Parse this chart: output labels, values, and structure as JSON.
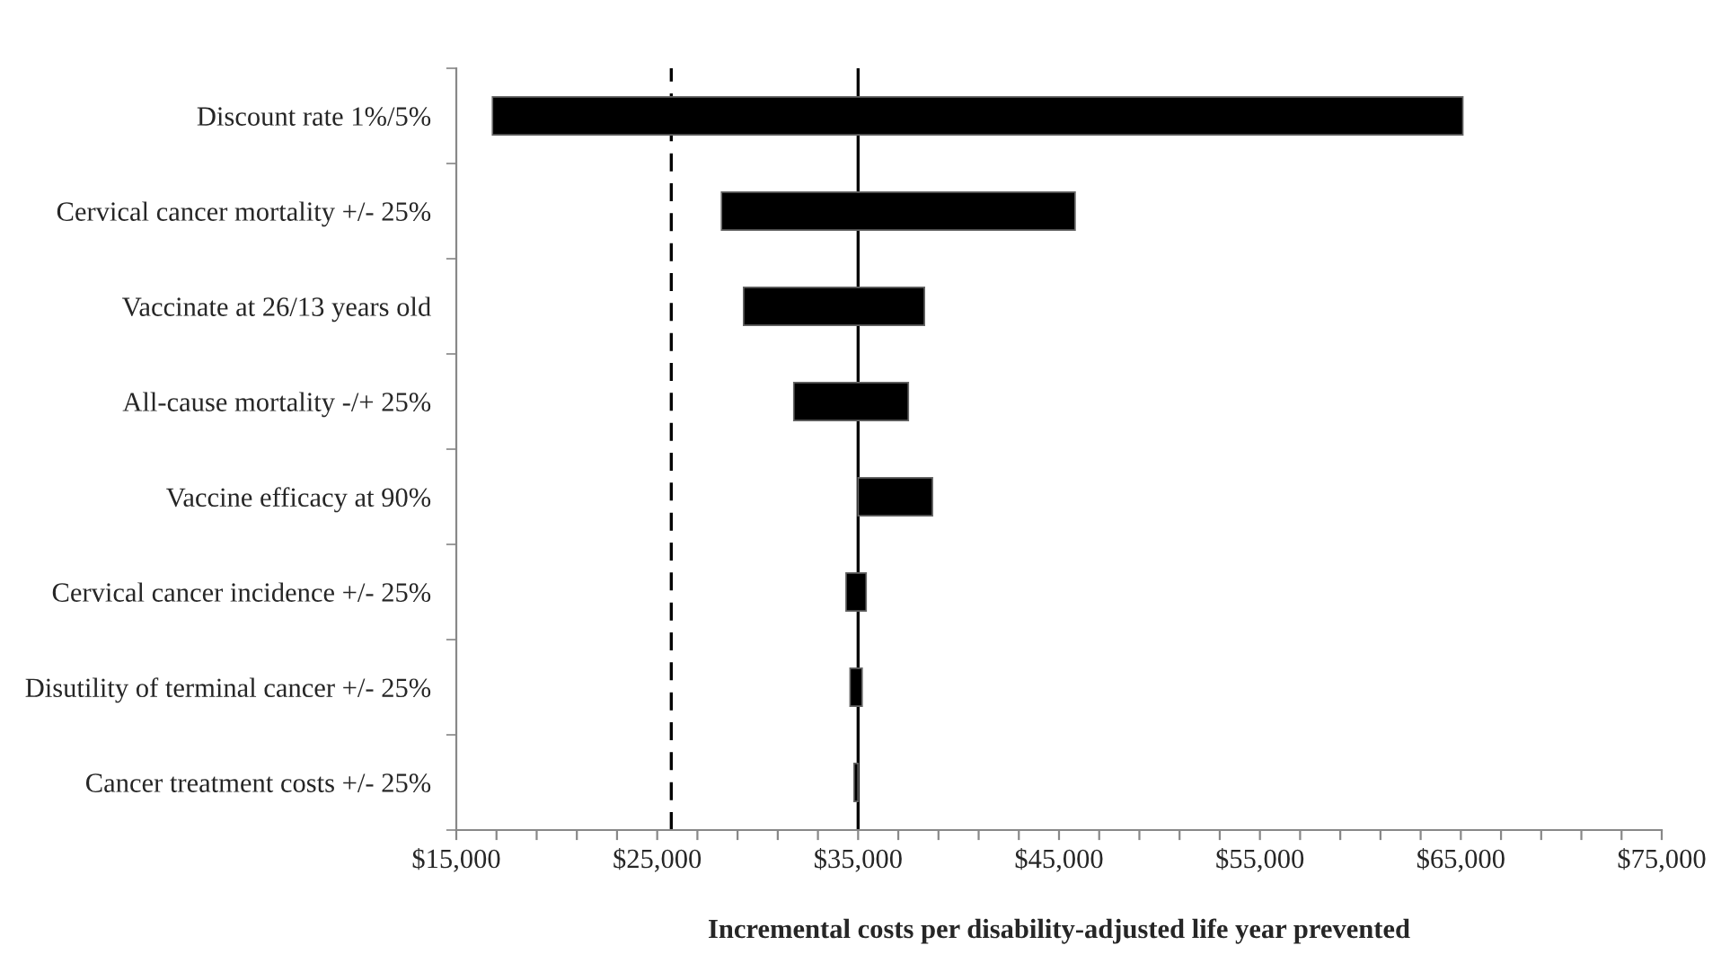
{
  "chart_data": {
    "type": "bar",
    "orientation": "horizontal",
    "xlabel": "Incremental costs per disability-adjusted life year prevented",
    "categories": [
      "Discount rate 1%/5%",
      "Cervical cancer mortality +/- 25%",
      "Vaccinate at 26/13 years old",
      "All-cause mortality -/+ 25%",
      "Vaccine efficacy at 90%",
      "Cervical cancer incidence +/- 25%",
      "Disutility of terminal cancer +/- 25%",
      "Cancer treatment costs +/- 25%"
    ],
    "base": [
      16800,
      28200,
      29300,
      31800,
      35000,
      34400,
      34600,
      34800
    ],
    "values": [
      48300,
      17600,
      9000,
      5700,
      3700,
      1000,
      600,
      200
    ],
    "color": "#000000",
    "xlim": [
      15000,
      75000
    ],
    "xticks": [
      {
        "value": 15000,
        "label": "$15,000"
      },
      {
        "value": 17000,
        "label": null
      },
      {
        "value": 19000,
        "label": null
      },
      {
        "value": 21000,
        "label": null
      },
      {
        "value": 23000,
        "label": null
      },
      {
        "value": 25000,
        "label": "$25,000"
      },
      {
        "value": 27000,
        "label": null
      },
      {
        "value": 29000,
        "label": null
      },
      {
        "value": 31000,
        "label": null
      },
      {
        "value": 33000,
        "label": null
      },
      {
        "value": 35000,
        "label": "$35,000"
      },
      {
        "value": 37000,
        "label": null
      },
      {
        "value": 39000,
        "label": null
      },
      {
        "value": 41000,
        "label": null
      },
      {
        "value": 43000,
        "label": null
      },
      {
        "value": 45000,
        "label": "$45,000"
      },
      {
        "value": 47000,
        "label": null
      },
      {
        "value": 49000,
        "label": null
      },
      {
        "value": 51000,
        "label": null
      },
      {
        "value": 53000,
        "label": null
      },
      {
        "value": 55000,
        "label": "$55,000"
      },
      {
        "value": 57000,
        "label": null
      },
      {
        "value": 59000,
        "label": null
      },
      {
        "value": 61000,
        "label": null
      },
      {
        "value": 63000,
        "label": null
      },
      {
        "value": 65000,
        "label": "$65,000"
      },
      {
        "value": 67000,
        "label": null
      },
      {
        "value": 69000,
        "label": null
      },
      {
        "value": 71000,
        "label": null
      },
      {
        "value": 73000,
        "label": null
      },
      {
        "value": 75000,
        "label": "$75,000"
      }
    ],
    "ref_lines": [
      {
        "axis": "x",
        "value": 35000,
        "color": "#000000",
        "line_style": "solid"
      },
      {
        "axis": "x",
        "value": 25700,
        "color": "#000000",
        "line_style": "dashed"
      }
    ],
    "grid": false,
    "legend": false
  }
}
